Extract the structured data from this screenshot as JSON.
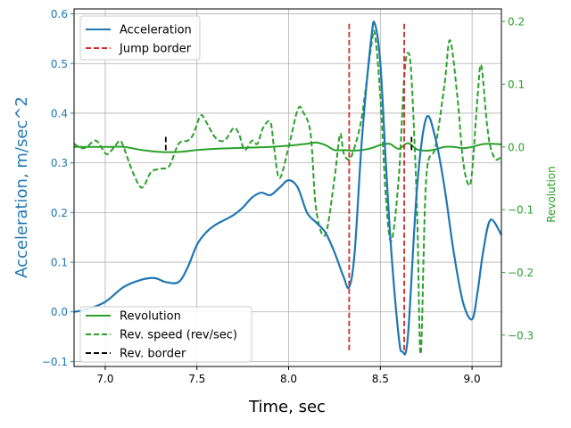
{
  "chart_data": {
    "type": "line",
    "xlabel": "Time, sec",
    "ylabel_left": "Acceleration, m/sec^2",
    "ylabel_right": "Revolution",
    "xlim": [
      6.83,
      9.16
    ],
    "ylim_left": [
      -0.11,
      0.61
    ],
    "ylim_right": [
      -0.35,
      0.22
    ],
    "x_ticks": [
      7.0,
      7.5,
      8.0,
      8.5,
      9.0
    ],
    "x_tick_labels": [
      "7.0",
      "7.5",
      "8.0",
      "8.5",
      "9.0"
    ],
    "y_left_ticks": [
      -0.1,
      0.0,
      0.1,
      0.2,
      0.3,
      0.4,
      0.5,
      0.6
    ],
    "y_left_tick_labels": [
      "−0.1",
      "0.0",
      "0.1",
      "0.2",
      "0.3",
      "0.4",
      "0.5",
      "0.6"
    ],
    "y_right_ticks": [
      -0.3,
      -0.2,
      -0.1,
      0.0,
      0.1,
      0.2
    ],
    "y_right_tick_labels": [
      "−0.3",
      "−0.2",
      "−0.1",
      "0.0",
      "0.1",
      "0.2"
    ],
    "grid": true,
    "colors": {
      "acceleration": "#1f77b4",
      "revolution": "#2ca02c",
      "jump_border": "#d62728",
      "rev_border": "#000000",
      "axis_left": "#1f77b4",
      "axis_right": "#2ca02c"
    },
    "legend_left": {
      "placement": "upper-left",
      "entries": [
        {
          "label": "Acceleration",
          "style": "solid",
          "color": "#1f77b4"
        },
        {
          "label": "Jump border",
          "style": "dashed",
          "color": "#d62728"
        }
      ]
    },
    "legend_right": {
      "placement": "lower-left",
      "entries": [
        {
          "label": "Revolution",
          "style": "solid",
          "color": "#2ca02c"
        },
        {
          "label": "Rev. speed (rev/sec)",
          "style": "dashed",
          "color": "#2ca02c"
        },
        {
          "label": "Rev. border",
          "style": "dashed",
          "color": "#000000"
        }
      ]
    },
    "series": [
      {
        "name": "Acceleration",
        "axis": "left",
        "style": "solid",
        "x": [
          6.83,
          6.9,
          7.0,
          7.1,
          7.2,
          7.27,
          7.33,
          7.4,
          7.45,
          7.5,
          7.55,
          7.6,
          7.65,
          7.7,
          7.75,
          7.8,
          7.85,
          7.9,
          7.95,
          8.0,
          8.05,
          8.1,
          8.15,
          8.2,
          8.25,
          8.3,
          8.33,
          8.36,
          8.4,
          8.45,
          8.47,
          8.5,
          8.53,
          8.56,
          8.6,
          8.62,
          8.65,
          8.7,
          8.75,
          8.8,
          8.85,
          8.9,
          8.95,
          9.0,
          9.03,
          9.06,
          9.1,
          9.16
        ],
        "y": [
          0.0,
          0.005,
          0.02,
          0.05,
          0.065,
          0.068,
          0.06,
          0.06,
          0.09,
          0.135,
          0.16,
          0.175,
          0.185,
          0.195,
          0.21,
          0.23,
          0.24,
          0.235,
          0.25,
          0.265,
          0.25,
          0.2,
          0.18,
          0.16,
          0.12,
          0.07,
          0.05,
          0.12,
          0.35,
          0.55,
          0.58,
          0.5,
          0.3,
          0.12,
          -0.05,
          -0.08,
          -0.05,
          0.25,
          0.39,
          0.35,
          0.25,
          0.12,
          0.02,
          -0.015,
          0.04,
          0.12,
          0.185,
          0.155
        ]
      },
      {
        "name": "Revolution",
        "axis": "right",
        "style": "solid",
        "x": [
          6.83,
          7.0,
          7.1,
          7.2,
          7.3,
          7.4,
          7.5,
          7.6,
          7.7,
          7.8,
          7.9,
          8.0,
          8.1,
          8.15,
          8.2,
          8.25,
          8.3,
          8.35,
          8.4,
          8.45,
          8.5,
          8.55,
          8.6,
          8.65,
          8.7,
          8.75,
          8.8,
          8.85,
          8.9,
          8.95,
          9.0,
          9.05,
          9.1,
          9.16
        ],
        "y": [
          0.0,
          0.0,
          0.0,
          -0.005,
          -0.008,
          -0.008,
          -0.005,
          -0.003,
          -0.002,
          -0.001,
          0.0,
          0.002,
          0.005,
          0.007,
          0.003,
          -0.005,
          -0.005,
          -0.006,
          -0.005,
          -0.002,
          0.003,
          0.005,
          -0.003,
          0.006,
          -0.004,
          -0.006,
          -0.004,
          0.0,
          0.0,
          -0.002,
          0.0,
          0.004,
          0.005,
          0.004
        ]
      },
      {
        "name": "Rev. speed (rev/sec)",
        "axis": "right",
        "style": "dashed",
        "x": [
          6.83,
          6.87,
          6.9,
          6.95,
          7.0,
          7.02,
          7.05,
          7.08,
          7.1,
          7.15,
          7.2,
          7.25,
          7.3,
          7.35,
          7.4,
          7.45,
          7.48,
          7.52,
          7.55,
          7.6,
          7.65,
          7.7,
          7.73,
          7.76,
          7.8,
          7.83,
          7.86,
          7.9,
          7.92,
          7.95,
          8.0,
          8.05,
          8.08,
          8.12,
          8.15,
          8.2,
          8.25,
          8.28,
          8.3,
          8.33,
          8.36,
          8.4,
          8.45,
          8.47,
          8.5,
          8.53,
          8.56,
          8.6,
          8.63,
          8.65,
          8.67,
          8.7,
          8.72,
          8.75,
          8.8,
          8.85,
          8.88,
          8.92,
          8.95,
          8.98,
          9.0,
          9.03,
          9.05,
          9.08,
          9.1,
          9.13,
          9.16
        ],
        "y": [
          0.005,
          -0.002,
          0.0,
          0.01,
          -0.01,
          -0.01,
          0.0,
          0.01,
          0.0,
          -0.04,
          -0.065,
          -0.04,
          -0.035,
          -0.03,
          0.005,
          0.01,
          0.02,
          0.05,
          0.04,
          0.015,
          0.01,
          0.03,
          0.02,
          -0.005,
          0.01,
          0.005,
          0.03,
          0.04,
          0.0,
          -0.05,
          0.0,
          0.06,
          0.055,
          0.02,
          -0.1,
          -0.14,
          -0.05,
          0.02,
          -0.01,
          -0.02,
          0.0,
          0.05,
          0.16,
          0.18,
          0.08,
          -0.08,
          -0.15,
          -0.05,
          0.11,
          0.15,
          0.11,
          -0.1,
          -0.33,
          -0.05,
          0.0,
          0.1,
          0.17,
          0.08,
          -0.02,
          -0.06,
          -0.04,
          0.08,
          0.13,
          0.04,
          0.0,
          -0.02,
          -0.015
        ]
      }
    ],
    "jump_border_x": [
      8.33,
      8.63
    ],
    "jump_border_y_range": [
      -0.08,
      0.58
    ],
    "rev_border_x": [
      7.33,
      8.67
    ],
    "rev_border_y_range": [
      -0.008,
      0.016
    ]
  }
}
